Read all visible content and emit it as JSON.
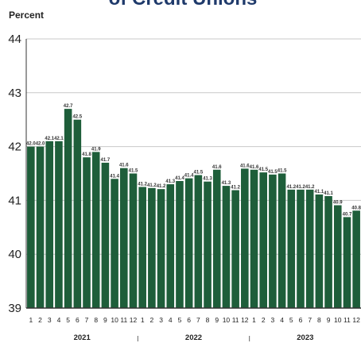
{
  "title_fragment": "of Credit Unions",
  "chart_data": {
    "type": "bar",
    "title": "",
    "ylabel": "Percent",
    "xlabel": "",
    "ylim": [
      39,
      44
    ],
    "yticks": [
      39,
      40,
      41,
      42,
      43,
      44
    ],
    "grid": "horizontal",
    "bar_color": "#1e5e3a",
    "grid_color": "#c8c8c8",
    "categories": [
      "1",
      "2",
      "3",
      "4",
      "5",
      "6",
      "7",
      "8",
      "9",
      "10",
      "11",
      "12",
      "1",
      "2",
      "3",
      "4",
      "5",
      "6",
      "7",
      "8",
      "9",
      "10",
      "11",
      "12",
      "1",
      "2",
      "3",
      "4",
      "5",
      "6",
      "7",
      "8",
      "9",
      "10",
      "11",
      "12"
    ],
    "year_groups": [
      {
        "label": "2021",
        "start": 0,
        "count": 12
      },
      {
        "label": "2022",
        "start": 12,
        "count": 12
      },
      {
        "label": "2023",
        "start": 24,
        "count": 12
      }
    ],
    "values": [
      42.0,
      42.0,
      42.1,
      42.1,
      42.7,
      42.5,
      41.8,
      41.9,
      41.7,
      41.4,
      41.6,
      41.5,
      41.2,
      41.2,
      41.2,
      41.3,
      41.4,
      41.4,
      41.5,
      41.3,
      41.6,
      41.3,
      41.2,
      41.6,
      41.6,
      41.5,
      41.5,
      41.5,
      41.2,
      41.2,
      41.2,
      41.1,
      41.1,
      40.9,
      40.7,
      40.8
    ],
    "bar_heights": [
      42.0,
      42.0,
      42.1,
      42.1,
      42.7,
      42.5,
      41.8,
      41.9,
      41.7,
      41.4,
      41.6,
      41.5,
      41.25,
      41.23,
      41.21,
      41.3,
      41.36,
      41.41,
      41.47,
      41.35,
      41.57,
      41.27,
      41.19,
      41.59,
      41.57,
      41.52,
      41.48,
      41.5,
      41.2,
      41.2,
      41.2,
      41.11,
      41.08,
      40.91,
      40.69,
      40.81
    ],
    "data_labels": [
      "42.0",
      "42.0",
      "42.1",
      "42.1",
      "42.7",
      "42.5",
      "41.8",
      "41.9",
      "41.7",
      "41.4",
      "41.6",
      "41.5",
      "41.2",
      "41.2",
      "41.2",
      "41.3",
      "41.4",
      "41.4",
      "41.5",
      "41.3",
      "41.6",
      "41.3",
      "41.2",
      "41.6",
      "41.6",
      "41.5",
      "41.5",
      "41.5",
      "41.2",
      "41.2",
      "41.2",
      "41.1",
      "41.1",
      "40.9",
      "40.7",
      "40.8"
    ]
  }
}
